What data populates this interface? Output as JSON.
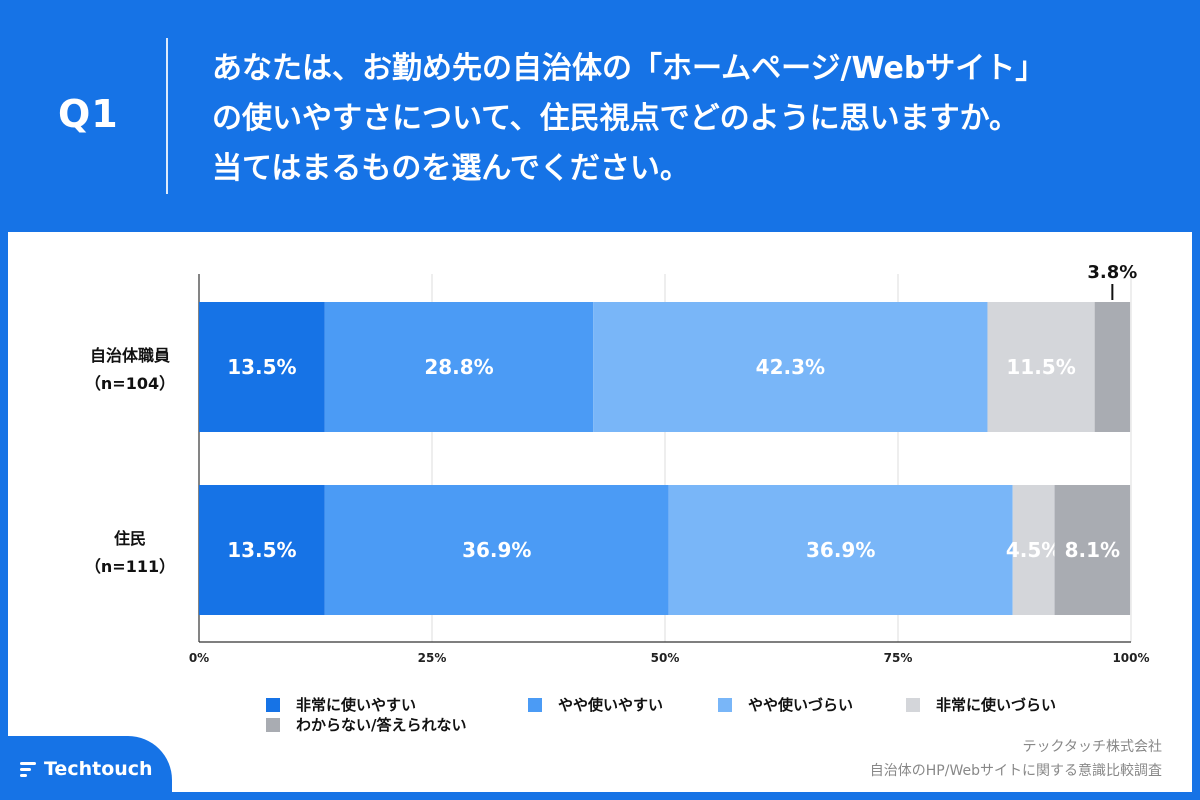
{
  "header": {
    "question_label": "Q1",
    "question_text": "あなたは、お勤め先の自治体の「ホームページ/Webサイト」\nの使いやすさについて、住民視点でどのように思いますか。\n当てはまるものを選んでください。"
  },
  "colors": {
    "background": "#1673E6",
    "series": [
      "#1673E6",
      "#4B9BF5",
      "#79B6F8",
      "#D4D6DA",
      "#A9ACB2"
    ]
  },
  "chart_data": {
    "type": "stacked-horizontal-bar",
    "categories": [
      {
        "name": "自治体職員",
        "n": "（n=104）"
      },
      {
        "name": "住民",
        "n": "（n=111）"
      }
    ],
    "series": [
      {
        "name": "非常に使いやすい",
        "values": [
          13.5,
          13.5
        ],
        "labels": [
          "13.5%",
          "13.5%"
        ]
      },
      {
        "name": "やや使いやすい",
        "values": [
          28.8,
          36.9
        ],
        "labels": [
          "28.8%",
          "36.9%"
        ]
      },
      {
        "name": "やや使いづらい",
        "values": [
          42.3,
          36.9
        ],
        "labels": [
          "42.3%",
          "36.9%"
        ]
      },
      {
        "name": "非常に使いづらい",
        "values": [
          11.5,
          4.5
        ],
        "labels": [
          "11.5%",
          "4.5%"
        ]
      },
      {
        "name": "わからない/答えられない",
        "values": [
          3.8,
          8.1
        ],
        "labels": [
          "3.8%",
          "8.1%"
        ]
      }
    ],
    "x_ticks": [
      "0%",
      "25%",
      "50%",
      "75%",
      "100%"
    ],
    "xlim": [
      0,
      100
    ],
    "grid": true,
    "legend_position": "bottom"
  },
  "footer": {
    "company": "テックタッチ株式会社",
    "survey": "自治体のHP/Webサイトに関する意識比較調査",
    "brand": "Techtouch"
  }
}
